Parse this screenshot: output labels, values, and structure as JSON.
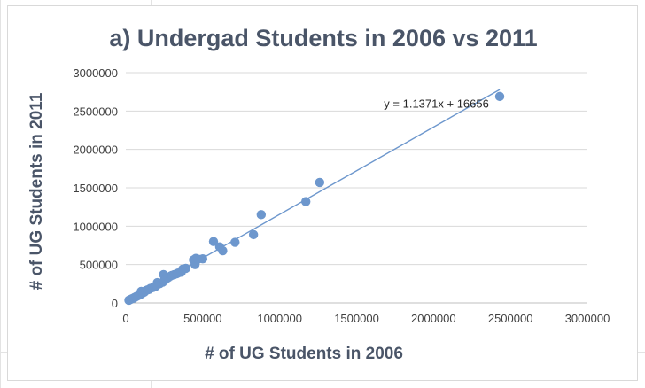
{
  "chart_data": {
    "type": "scatter",
    "title": "a) Undergad Students in 2006 vs 2011",
    "xlabel": "# of UG Students in 2006",
    "ylabel": "# of UG Students in 2011",
    "xlim": [
      0,
      3000000
    ],
    "ylim": [
      0,
      3000000
    ],
    "x_ticks": [
      "0",
      "500000",
      "1000000",
      "1500000",
      "2000000",
      "2500000",
      "3000000"
    ],
    "y_ticks": [
      "0",
      "500000",
      "1000000",
      "1500000",
      "2000000",
      "2500000",
      "3000000"
    ],
    "grid": "horizontal",
    "trendline": {
      "type": "linear",
      "slope": 1.1371,
      "intercept": 16656,
      "label": "y = 1.1371x + 16656"
    },
    "series": [
      {
        "points": [
          [
            20000,
            35000
          ],
          [
            30000,
            45000
          ],
          [
            40000,
            55000
          ],
          [
            50000,
            60000
          ],
          [
            55000,
            70000
          ],
          [
            65000,
            80000
          ],
          [
            75000,
            90000
          ],
          [
            85000,
            100000
          ],
          [
            95000,
            110000
          ],
          [
            100000,
            150000
          ],
          [
            110000,
            130000
          ],
          [
            120000,
            140000
          ],
          [
            130000,
            160000
          ],
          [
            140000,
            170000
          ],
          [
            150000,
            175000
          ],
          [
            160000,
            190000
          ],
          [
            175000,
            200000
          ],
          [
            190000,
            210000
          ],
          [
            200000,
            230000
          ],
          [
            205000,
            265000
          ],
          [
            220000,
            250000
          ],
          [
            240000,
            270000
          ],
          [
            245000,
            370000
          ],
          [
            250000,
            290000
          ],
          [
            260000,
            310000
          ],
          [
            275000,
            330000
          ],
          [
            290000,
            350000
          ],
          [
            300000,
            360000
          ],
          [
            315000,
            370000
          ],
          [
            330000,
            380000
          ],
          [
            340000,
            390000
          ],
          [
            360000,
            400000
          ],
          [
            370000,
            440000
          ],
          [
            390000,
            450000
          ],
          [
            440000,
            560000
          ],
          [
            450000,
            500000
          ],
          [
            455000,
            580000
          ],
          [
            470000,
            570000
          ],
          [
            500000,
            575000
          ],
          [
            570000,
            800000
          ],
          [
            610000,
            730000
          ],
          [
            630000,
            680000
          ],
          [
            710000,
            790000
          ],
          [
            830000,
            890000
          ],
          [
            880000,
            1150000
          ],
          [
            1170000,
            1320000
          ],
          [
            1260000,
            1570000
          ],
          [
            2430000,
            2690000
          ]
        ]
      }
    ]
  }
}
